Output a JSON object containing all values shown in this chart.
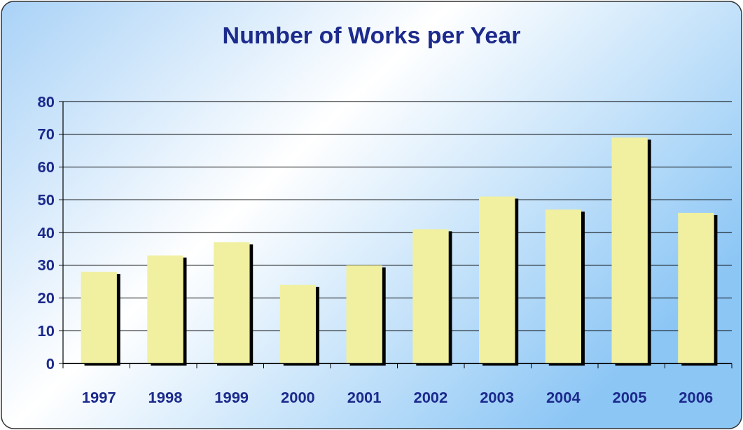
{
  "chart_data": {
    "type": "bar",
    "title": "Number of Works per Year",
    "categories": [
      "1997",
      "1998",
      "1999",
      "2000",
      "2001",
      "2002",
      "2003",
      "2004",
      "2005",
      "2006"
    ],
    "values": [
      28,
      33,
      37,
      24,
      30,
      41,
      51,
      47,
      69,
      46
    ],
    "color": "#f0f0a0",
    "ylim": [
      0,
      80
    ],
    "yticks": [
      0,
      10,
      20,
      30,
      40,
      50,
      60,
      70,
      80
    ],
    "grid": "y"
  }
}
